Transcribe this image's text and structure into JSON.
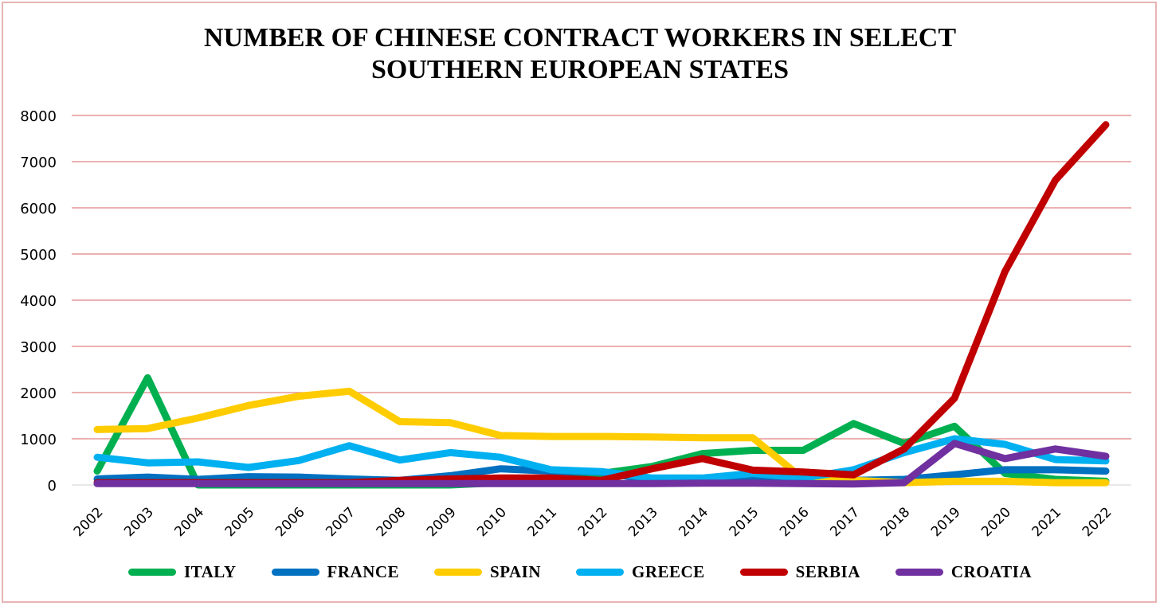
{
  "chart_data": {
    "type": "line",
    "title_lines": [
      "NUMBER OF CHINESE CONTRACT WORKERS IN SELECT",
      "SOUTHERN EUROPEAN STATES"
    ],
    "xlabel": "",
    "ylabel": "",
    "ylim": [
      0,
      8000
    ],
    "y_ticks": [
      "0",
      "1000",
      "2000",
      "3000",
      "4000",
      "5000",
      "6000",
      "7000",
      "8000"
    ],
    "grid": "horizontal",
    "legend_position": "bottom",
    "categories": [
      "2002",
      "2003",
      "2004",
      "2005",
      "2006",
      "2007",
      "2008",
      "2009",
      "2010",
      "2011",
      "2012",
      "2013",
      "2014",
      "2015",
      "2016",
      "2017",
      "2018",
      "2019",
      "2020",
      "2021",
      "2022"
    ],
    "series": [
      {
        "name": "ITALY",
        "color": "#00b050",
        "values": [
          300,
          2320,
          0,
          0,
          0,
          0,
          0,
          0,
          50,
          80,
          250,
          400,
          680,
          750,
          750,
          1330,
          900,
          1270,
          250,
          120,
          80
        ]
      },
      {
        "name": "FRANCE",
        "color": "#0070c0",
        "values": [
          130,
          170,
          120,
          180,
          170,
          130,
          100,
          200,
          350,
          300,
          280,
          100,
          100,
          100,
          100,
          100,
          120,
          220,
          330,
          330,
          300
        ]
      },
      {
        "name": "SPAIN",
        "color": "#ffcc00",
        "values": [
          1200,
          1220,
          1450,
          1720,
          1920,
          2030,
          1370,
          1350,
          1070,
          1050,
          1050,
          1040,
          1020,
          1020,
          130,
          100,
          50,
          80,
          80,
          50,
          50
        ]
      },
      {
        "name": "GREECE",
        "color": "#00b0f0",
        "values": [
          600,
          480,
          500,
          380,
          530,
          850,
          540,
          700,
          600,
          330,
          290,
          150,
          150,
          250,
          150,
          330,
          700,
          1000,
          880,
          550,
          520
        ]
      },
      {
        "name": "SERBIA",
        "color": "#c00000",
        "values": [
          50,
          50,
          50,
          50,
          50,
          50,
          100,
          130,
          150,
          150,
          100,
          350,
          570,
          320,
          280,
          220,
          780,
          1880,
          4620,
          6600,
          7800
        ]
      },
      {
        "name": "CROATIA",
        "color": "#7030a0",
        "values": [
          30,
          30,
          30,
          30,
          30,
          30,
          30,
          30,
          30,
          30,
          30,
          30,
          40,
          40,
          30,
          20,
          50,
          900,
          570,
          780,
          620
        ]
      }
    ]
  }
}
